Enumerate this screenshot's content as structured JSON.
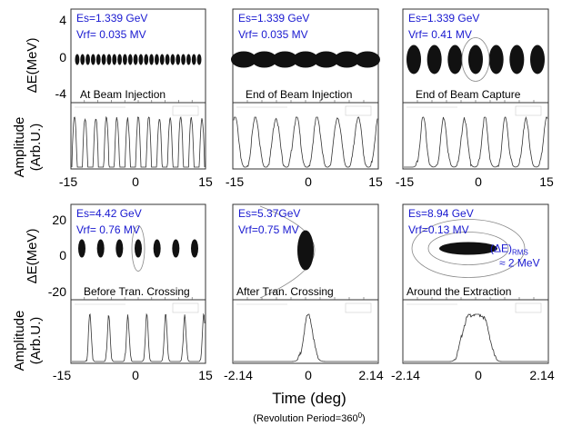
{
  "chart_data": {
    "type": "scatter",
    "y_label_phase": "ΔE(MeV)",
    "y_label_amp": "Amplitude\n(Arb.U.)",
    "x_label": "Time  (deg)",
    "footnote": "(Revolution Period=360",
    "footnote_sup": "0",
    "footnote_end": ")",
    "ticks_row1_y": [
      "4",
      "0",
      "-4"
    ],
    "ticks_row2_y": [
      "20",
      "0",
      "-20"
    ],
    "ticks_x_wide": [
      "-15",
      "0",
      "15"
    ],
    "ticks_x_narrow": [
      "-2.14",
      "0",
      "2.14"
    ],
    "panels": [
      {
        "energy": "Es=1.339 GeV",
        "vrf": "Vrf= 0.035 MV",
        "title": "At Beam Injection",
        "bunches": 24,
        "xrange": [
          -15,
          15
        ]
      },
      {
        "energy": "Es=1.339 GeV",
        "vrf": "Vrf= 0.035 MV",
        "title": "End of  Beam Injection",
        "bunches": 7,
        "xrange": [
          -15,
          15
        ]
      },
      {
        "energy": "Es=1.339 GeV",
        "vrf": "Vrf= 0.41 MV",
        "title": "End of  Beam Capture",
        "bunches": 7,
        "xrange": [
          -15,
          15
        ]
      },
      {
        "energy": "Es=4.42 GeV",
        "vrf": "Vrf= 0.76 MV",
        "title": "Before Tran. Crossing",
        "bunches": 7,
        "xrange": [
          -15,
          15
        ]
      },
      {
        "energy": "Es=5.37GeV",
        "vrf": "Vrf=0.75 MV",
        "title": "After Tran. Crossing",
        "bunches": 1,
        "xrange": [
          -2.14,
          2.14
        ]
      },
      {
        "energy": "Es=8.94 GeV",
        "vrf": "Vrf=0.13 MV",
        "title": "Around the Extraction",
        "bunches": 1,
        "xrange": [
          -2.14,
          2.14
        ],
        "annotation": "(ΔE)",
        "annotation_sub": "RMS",
        "annotation2": "≈ 2 MeV"
      }
    ]
  }
}
